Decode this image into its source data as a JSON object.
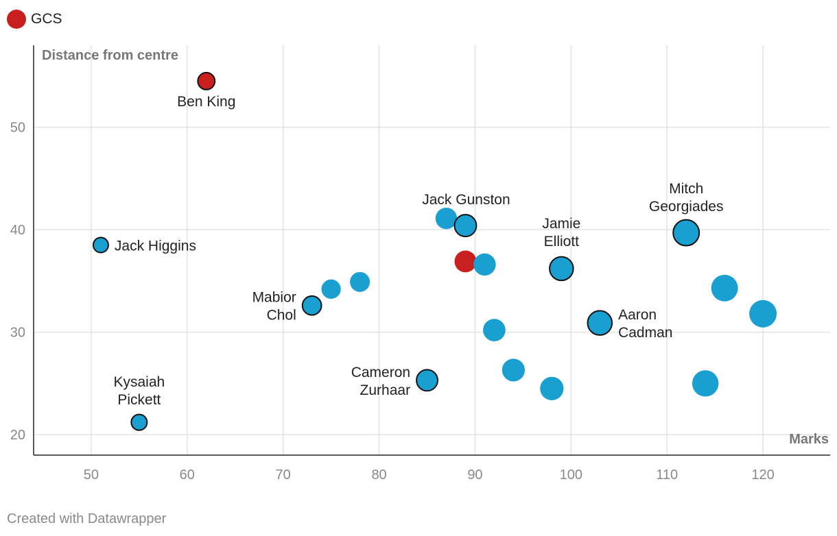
{
  "legend": {
    "label": "GCS",
    "color": "#c91f1f"
  },
  "footer": "Created with Datawrapper",
  "chart_data": {
    "type": "scatter",
    "title": "",
    "xlabel": "Marks",
    "ylabel": "Distance from centre",
    "xlim": [
      44,
      127
    ],
    "ylim": [
      18,
      58
    ],
    "xticks": [
      50,
      60,
      70,
      80,
      90,
      100,
      110,
      120
    ],
    "yticks": [
      20,
      30,
      40,
      50
    ],
    "grid": true,
    "legend_position": "top-left",
    "colors": {
      "other": "#1a9fd1",
      "GCS": "#c91f1f",
      "outline": "#111111",
      "grid": "#e2e2e2"
    },
    "points": [
      {
        "x": 62,
        "y": 54.5,
        "group": "GCS",
        "highlighted": true,
        "label": [
          "Ben King"
        ]
      },
      {
        "x": 89,
        "y": 36.9,
        "group": "GCS",
        "highlighted": false,
        "label": []
      },
      {
        "x": 51,
        "y": 38.5,
        "group": "other",
        "highlighted": true,
        "label": [
          "Jack Higgins"
        ]
      },
      {
        "x": 55,
        "y": 21.2,
        "group": "other",
        "highlighted": true,
        "label": [
          "Kysaiah",
          "Pickett"
        ]
      },
      {
        "x": 73,
        "y": 32.6,
        "group": "other",
        "highlighted": true,
        "label": [
          "Mabior",
          "Chol"
        ]
      },
      {
        "x": 75,
        "y": 34.2,
        "group": "other",
        "highlighted": false,
        "label": []
      },
      {
        "x": 78,
        "y": 34.9,
        "group": "other",
        "highlighted": false,
        "label": []
      },
      {
        "x": 85,
        "y": 25.3,
        "group": "other",
        "highlighted": true,
        "label": [
          "Cameron",
          "Zurhaar"
        ]
      },
      {
        "x": 87,
        "y": 41.1,
        "group": "other",
        "highlighted": false,
        "label": []
      },
      {
        "x": 89,
        "y": 40.4,
        "group": "other",
        "highlighted": true,
        "label": [
          "Jack Gunston"
        ]
      },
      {
        "x": 91,
        "y": 36.6,
        "group": "other",
        "highlighted": false,
        "label": []
      },
      {
        "x": 92,
        "y": 30.2,
        "group": "other",
        "highlighted": false,
        "label": []
      },
      {
        "x": 94,
        "y": 26.3,
        "group": "other",
        "highlighted": false,
        "label": []
      },
      {
        "x": 98,
        "y": 24.5,
        "group": "other",
        "highlighted": false,
        "label": []
      },
      {
        "x": 99,
        "y": 36.2,
        "group": "other",
        "highlighted": true,
        "label": [
          "Jamie",
          "Elliott"
        ]
      },
      {
        "x": 103,
        "y": 30.9,
        "group": "other",
        "highlighted": true,
        "label": [
          "Aaron",
          "Cadman"
        ]
      },
      {
        "x": 112,
        "y": 39.7,
        "group": "other",
        "highlighted": true,
        "label": [
          "Mitch",
          "Georgiades"
        ]
      },
      {
        "x": 114,
        "y": 25.0,
        "group": "other",
        "highlighted": false,
        "label": []
      },
      {
        "x": 116,
        "y": 34.3,
        "group": "other",
        "highlighted": false,
        "label": []
      },
      {
        "x": 120,
        "y": 31.8,
        "group": "other",
        "highlighted": false,
        "label": []
      }
    ]
  }
}
